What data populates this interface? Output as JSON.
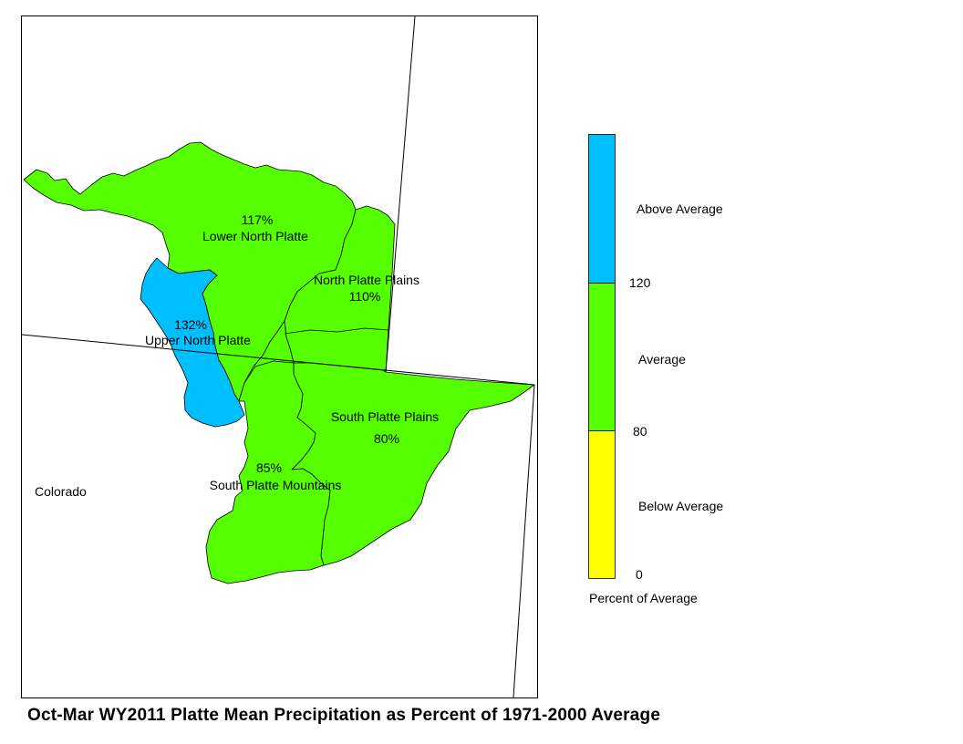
{
  "map": {
    "title": "Oct-Mar WY2011 Platte Mean Precipitation as Percent of 1971-2000 Average",
    "state_label": "Colorado",
    "colors": {
      "above": "#00bfff",
      "average": "#55ff00",
      "below": "#ffff00"
    },
    "basins": [
      {
        "id": "lower-north-platte",
        "name": "Lower North Platte",
        "percent": "117%",
        "category": "average"
      },
      {
        "id": "north-platte-plains",
        "name": "North Platte Plains",
        "percent": "110%",
        "category": "average"
      },
      {
        "id": "upper-north-platte",
        "name": "Upper North Platte",
        "percent": "132%",
        "category": "above"
      },
      {
        "id": "south-platte-plains",
        "name": "South Platte Plains",
        "percent": "80%",
        "category": "average"
      },
      {
        "id": "south-platte-mountains",
        "name": "South Platte Mountains",
        "percent": "85%",
        "category": "average"
      }
    ]
  },
  "legend": {
    "caption": "Percent of Average",
    "classes": [
      {
        "label": "Above Average",
        "color": "#00bfff",
        "range": [
          120,
          null
        ]
      },
      {
        "label": "Average",
        "color": "#55ff00",
        "range": [
          80,
          120
        ]
      },
      {
        "label": "Below Average",
        "color": "#ffff00",
        "range": [
          0,
          80
        ]
      }
    ],
    "ticks": [
      "120",
      "80",
      "0"
    ]
  }
}
